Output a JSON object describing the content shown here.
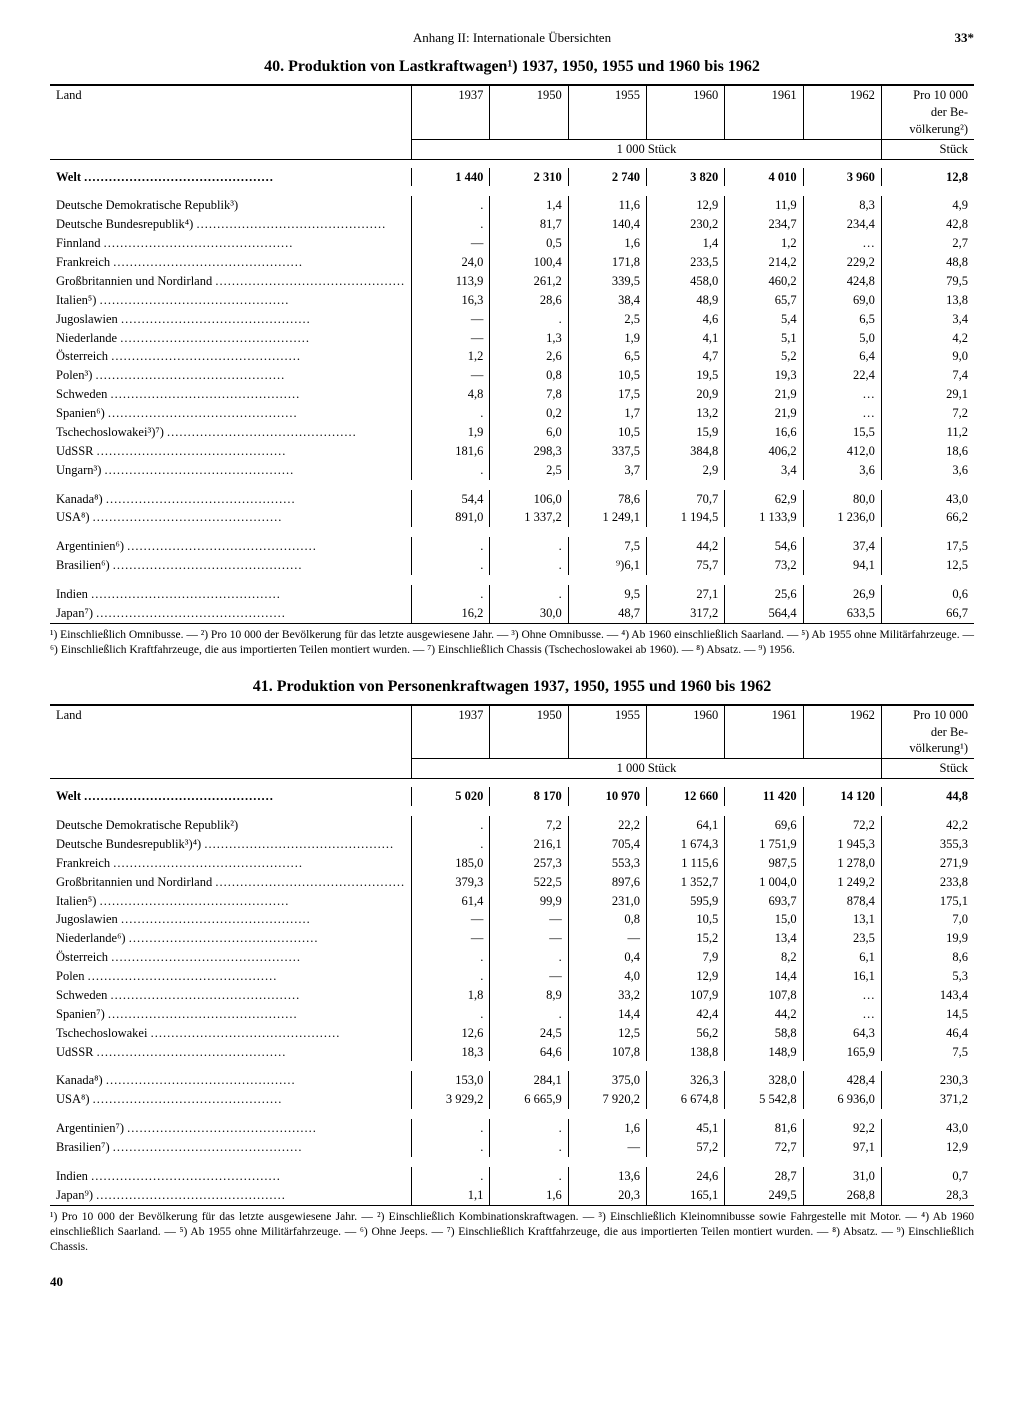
{
  "header": {
    "center": "Anhang II: Internationale Übersichten",
    "pagenum": "33*"
  },
  "footer_page": "40",
  "table40": {
    "title": "40. Produktion von Lastkraftwagen¹) 1937, 1950, 1955 und 1960 bis 1962",
    "col_land": "Land",
    "years": [
      "1937",
      "1950",
      "1955",
      "1960",
      "1961",
      "1962"
    ],
    "lastcol_lines": [
      "Pro 10 000",
      "der Be-",
      "völkerung²)"
    ],
    "unit_main": "1 000 Stück",
    "unit_last": "Stück",
    "rows": [
      {
        "land": "Welt",
        "v": [
          "1 440",
          "2 310",
          "2 740",
          "3 820",
          "4 010",
          "3 960",
          "12,8"
        ],
        "bold": true
      },
      {
        "spacer": true
      },
      {
        "land": "Deutsche Demokratische Republik³)",
        "v": [
          ".",
          "1,4",
          "11,6",
          "12,9",
          "11,9",
          "8,3",
          "4,9"
        ],
        "nodots": true
      },
      {
        "land": "Deutsche Bundesrepublik⁴)",
        "v": [
          ".",
          "81,7",
          "140,4",
          "230,2",
          "234,7",
          "234,4",
          "42,8"
        ]
      },
      {
        "land": "Finnland",
        "v": [
          "—",
          "0,5",
          "1,6",
          "1,4",
          "1,2",
          "…",
          "2,7"
        ]
      },
      {
        "land": "Frankreich",
        "v": [
          "24,0",
          "100,4",
          "171,8",
          "233,5",
          "214,2",
          "229,2",
          "48,8"
        ]
      },
      {
        "land": "Großbritannien und Nordirland",
        "v": [
          "113,9",
          "261,2",
          "339,5",
          "458,0",
          "460,2",
          "424,8",
          "79,5"
        ]
      },
      {
        "land": "Italien⁵)",
        "v": [
          "16,3",
          "28,6",
          "38,4",
          "48,9",
          "65,7",
          "69,0",
          "13,8"
        ]
      },
      {
        "land": "Jugoslawien",
        "v": [
          "—",
          ".",
          "2,5",
          "4,6",
          "5,4",
          "6,5",
          "3,4"
        ]
      },
      {
        "land": "Niederlande",
        "v": [
          "—",
          "1,3",
          "1,9",
          "4,1",
          "5,1",
          "5,0",
          "4,2"
        ]
      },
      {
        "land": "Österreich",
        "v": [
          "1,2",
          "2,6",
          "6,5",
          "4,7",
          "5,2",
          "6,4",
          "9,0"
        ]
      },
      {
        "land": "Polen³)",
        "v": [
          "—",
          "0,8",
          "10,5",
          "19,5",
          "19,3",
          "22,4",
          "7,4"
        ]
      },
      {
        "land": "Schweden",
        "v": [
          "4,8",
          "7,8",
          "17,5",
          "20,9",
          "21,9",
          "…",
          "29,1"
        ]
      },
      {
        "land": "Spanien⁶)",
        "v": [
          ".",
          "0,2",
          "1,7",
          "13,2",
          "21,9",
          "…",
          "7,2"
        ]
      },
      {
        "land": "Tschechoslowakei³)⁷)",
        "v": [
          "1,9",
          "6,0",
          "10,5",
          "15,9",
          "16,6",
          "15,5",
          "11,2"
        ]
      },
      {
        "land": "UdSSR",
        "v": [
          "181,6",
          "298,3",
          "337,5",
          "384,8",
          "406,2",
          "412,0",
          "18,6"
        ]
      },
      {
        "land": "Ungarn³)",
        "v": [
          ".",
          "2,5",
          "3,7",
          "2,9",
          "3,4",
          "3,6",
          "3,6"
        ]
      },
      {
        "spacer": true
      },
      {
        "land": "Kanada⁸)",
        "v": [
          "54,4",
          "106,0",
          "78,6",
          "70,7",
          "62,9",
          "80,0",
          "43,0"
        ]
      },
      {
        "land": "USA⁸)",
        "v": [
          "891,0",
          "1 337,2",
          "1 249,1",
          "1 194,5",
          "1 133,9",
          "1 236,0",
          "66,2"
        ]
      },
      {
        "spacer": true
      },
      {
        "land": "Argentinien⁶)",
        "v": [
          ".",
          ".",
          "7,5",
          "44,2",
          "54,6",
          "37,4",
          "17,5"
        ]
      },
      {
        "land": "Brasilien⁶)",
        "v": [
          ".",
          ".",
          "⁹)6,1",
          "75,7",
          "73,2",
          "94,1",
          "12,5"
        ]
      },
      {
        "spacer": true
      },
      {
        "land": "Indien",
        "v": [
          ".",
          ".",
          "9,5",
          "27,1",
          "25,6",
          "26,9",
          "0,6"
        ]
      },
      {
        "land": "Japan⁷)",
        "v": [
          "16,2",
          "30,0",
          "48,7",
          "317,2",
          "564,4",
          "633,5",
          "66,7"
        ]
      }
    ],
    "footnotes": "¹) Einschließlich Omnibusse. — ²) Pro 10 000 der Bevölkerung für das letzte ausgewiesene Jahr. — ³) Ohne Omnibusse. — ⁴) Ab 1960 einschließlich Saarland. — ⁵) Ab 1955 ohne Militärfahrzeuge. — ⁶) Einschließlich Kraftfahrzeuge, die aus importierten Teilen montiert wurden. — ⁷) Einschließlich Chassis (Tschechoslowakei ab 1960). — ⁸) Absatz. — ⁹) 1956."
  },
  "table41": {
    "title": "41. Produktion von Personenkraftwagen 1937, 1950, 1955 und 1960 bis 1962",
    "col_land": "Land",
    "years": [
      "1937",
      "1950",
      "1955",
      "1960",
      "1961",
      "1962"
    ],
    "lastcol_lines": [
      "Pro 10 000",
      "der Be-",
      "völkerung¹)"
    ],
    "unit_main": "1 000 Stück",
    "unit_last": "Stück",
    "rows": [
      {
        "land": "Welt",
        "v": [
          "5 020",
          "8 170",
          "10 970",
          "12 660",
          "11 420",
          "14 120",
          "44,8"
        ],
        "bold": true
      },
      {
        "spacer": true
      },
      {
        "land": "Deutsche Demokratische Republik²)",
        "v": [
          ".",
          "7,2",
          "22,2",
          "64,1",
          "69,6",
          "72,2",
          "42,2"
        ],
        "nodots": true
      },
      {
        "land": "Deutsche Bundesrepublik³)⁴)",
        "v": [
          ".",
          "216,1",
          "705,4",
          "1 674,3",
          "1 751,9",
          "1 945,3",
          "355,3"
        ]
      },
      {
        "land": "Frankreich",
        "v": [
          "185,0",
          "257,3",
          "553,3",
          "1 115,6",
          "987,5",
          "1 278,0",
          "271,9"
        ]
      },
      {
        "land": "Großbritannien und Nordirland",
        "v": [
          "379,3",
          "522,5",
          "897,6",
          "1 352,7",
          "1 004,0",
          "1 249,2",
          "233,8"
        ]
      },
      {
        "land": "Italien⁵)",
        "v": [
          "61,4",
          "99,9",
          "231,0",
          "595,9",
          "693,7",
          "878,4",
          "175,1"
        ]
      },
      {
        "land": "Jugoslawien",
        "v": [
          "—",
          "—",
          "0,8",
          "10,5",
          "15,0",
          "13,1",
          "7,0"
        ]
      },
      {
        "land": "Niederlande⁶)",
        "v": [
          "—",
          "—",
          "—",
          "15,2",
          "13,4",
          "23,5",
          "19,9"
        ]
      },
      {
        "land": "Österreich",
        "v": [
          ".",
          ".",
          "0,4",
          "7,9",
          "8,2",
          "6,1",
          "8,6"
        ]
      },
      {
        "land": "Polen",
        "v": [
          ".",
          "—",
          "4,0",
          "12,9",
          "14,4",
          "16,1",
          "5,3"
        ]
      },
      {
        "land": "Schweden",
        "v": [
          "1,8",
          "8,9",
          "33,2",
          "107,9",
          "107,8",
          "…",
          "143,4"
        ]
      },
      {
        "land": "Spanien⁷)",
        "v": [
          ".",
          ".",
          "14,4",
          "42,4",
          "44,2",
          "…",
          "14,5"
        ]
      },
      {
        "land": "Tschechoslowakei",
        "v": [
          "12,6",
          "24,5",
          "12,5",
          "56,2",
          "58,8",
          "64,3",
          "46,4"
        ]
      },
      {
        "land": "UdSSR",
        "v": [
          "18,3",
          "64,6",
          "107,8",
          "138,8",
          "148,9",
          "165,9",
          "7,5"
        ]
      },
      {
        "spacer": true
      },
      {
        "land": "Kanada⁸)",
        "v": [
          "153,0",
          "284,1",
          "375,0",
          "326,3",
          "328,0",
          "428,4",
          "230,3"
        ]
      },
      {
        "land": "USA⁸)",
        "v": [
          "3 929,2",
          "6 665,9",
          "7 920,2",
          "6 674,8",
          "5 542,8",
          "6 936,0",
          "371,2"
        ]
      },
      {
        "spacer": true
      },
      {
        "land": "Argentinien⁷)",
        "v": [
          ".",
          ".",
          "1,6",
          "45,1",
          "81,6",
          "92,2",
          "43,0"
        ]
      },
      {
        "land": "Brasilien⁷)",
        "v": [
          ".",
          ".",
          "—",
          "57,2",
          "72,7",
          "97,1",
          "12,9"
        ]
      },
      {
        "spacer": true
      },
      {
        "land": "Indien",
        "v": [
          ".",
          ".",
          "13,6",
          "24,6",
          "28,7",
          "31,0",
          "0,7"
        ]
      },
      {
        "land": "Japan⁹)",
        "v": [
          "1,1",
          "1,6",
          "20,3",
          "165,1",
          "249,5",
          "268,8",
          "28,3"
        ]
      }
    ],
    "footnotes": "¹) Pro 10 000 der Bevölkerung für das letzte ausgewiesene Jahr. — ²) Einschließlich Kombinationskraftwagen. — ³) Einschließlich Kleinomnibusse sowie Fahrgestelle mit Motor. — ⁴) Ab 1960 einschließlich Saarland. — ⁵) Ab 1955 ohne Militärfahrzeuge. — ⁶) Ohne Jeeps. — ⁷) Einschließlich Kraftfahrzeuge, die aus importierten Teilen montiert wurden. — ⁸) Absatz. — ⁹) Einschließlich Chassis."
  }
}
